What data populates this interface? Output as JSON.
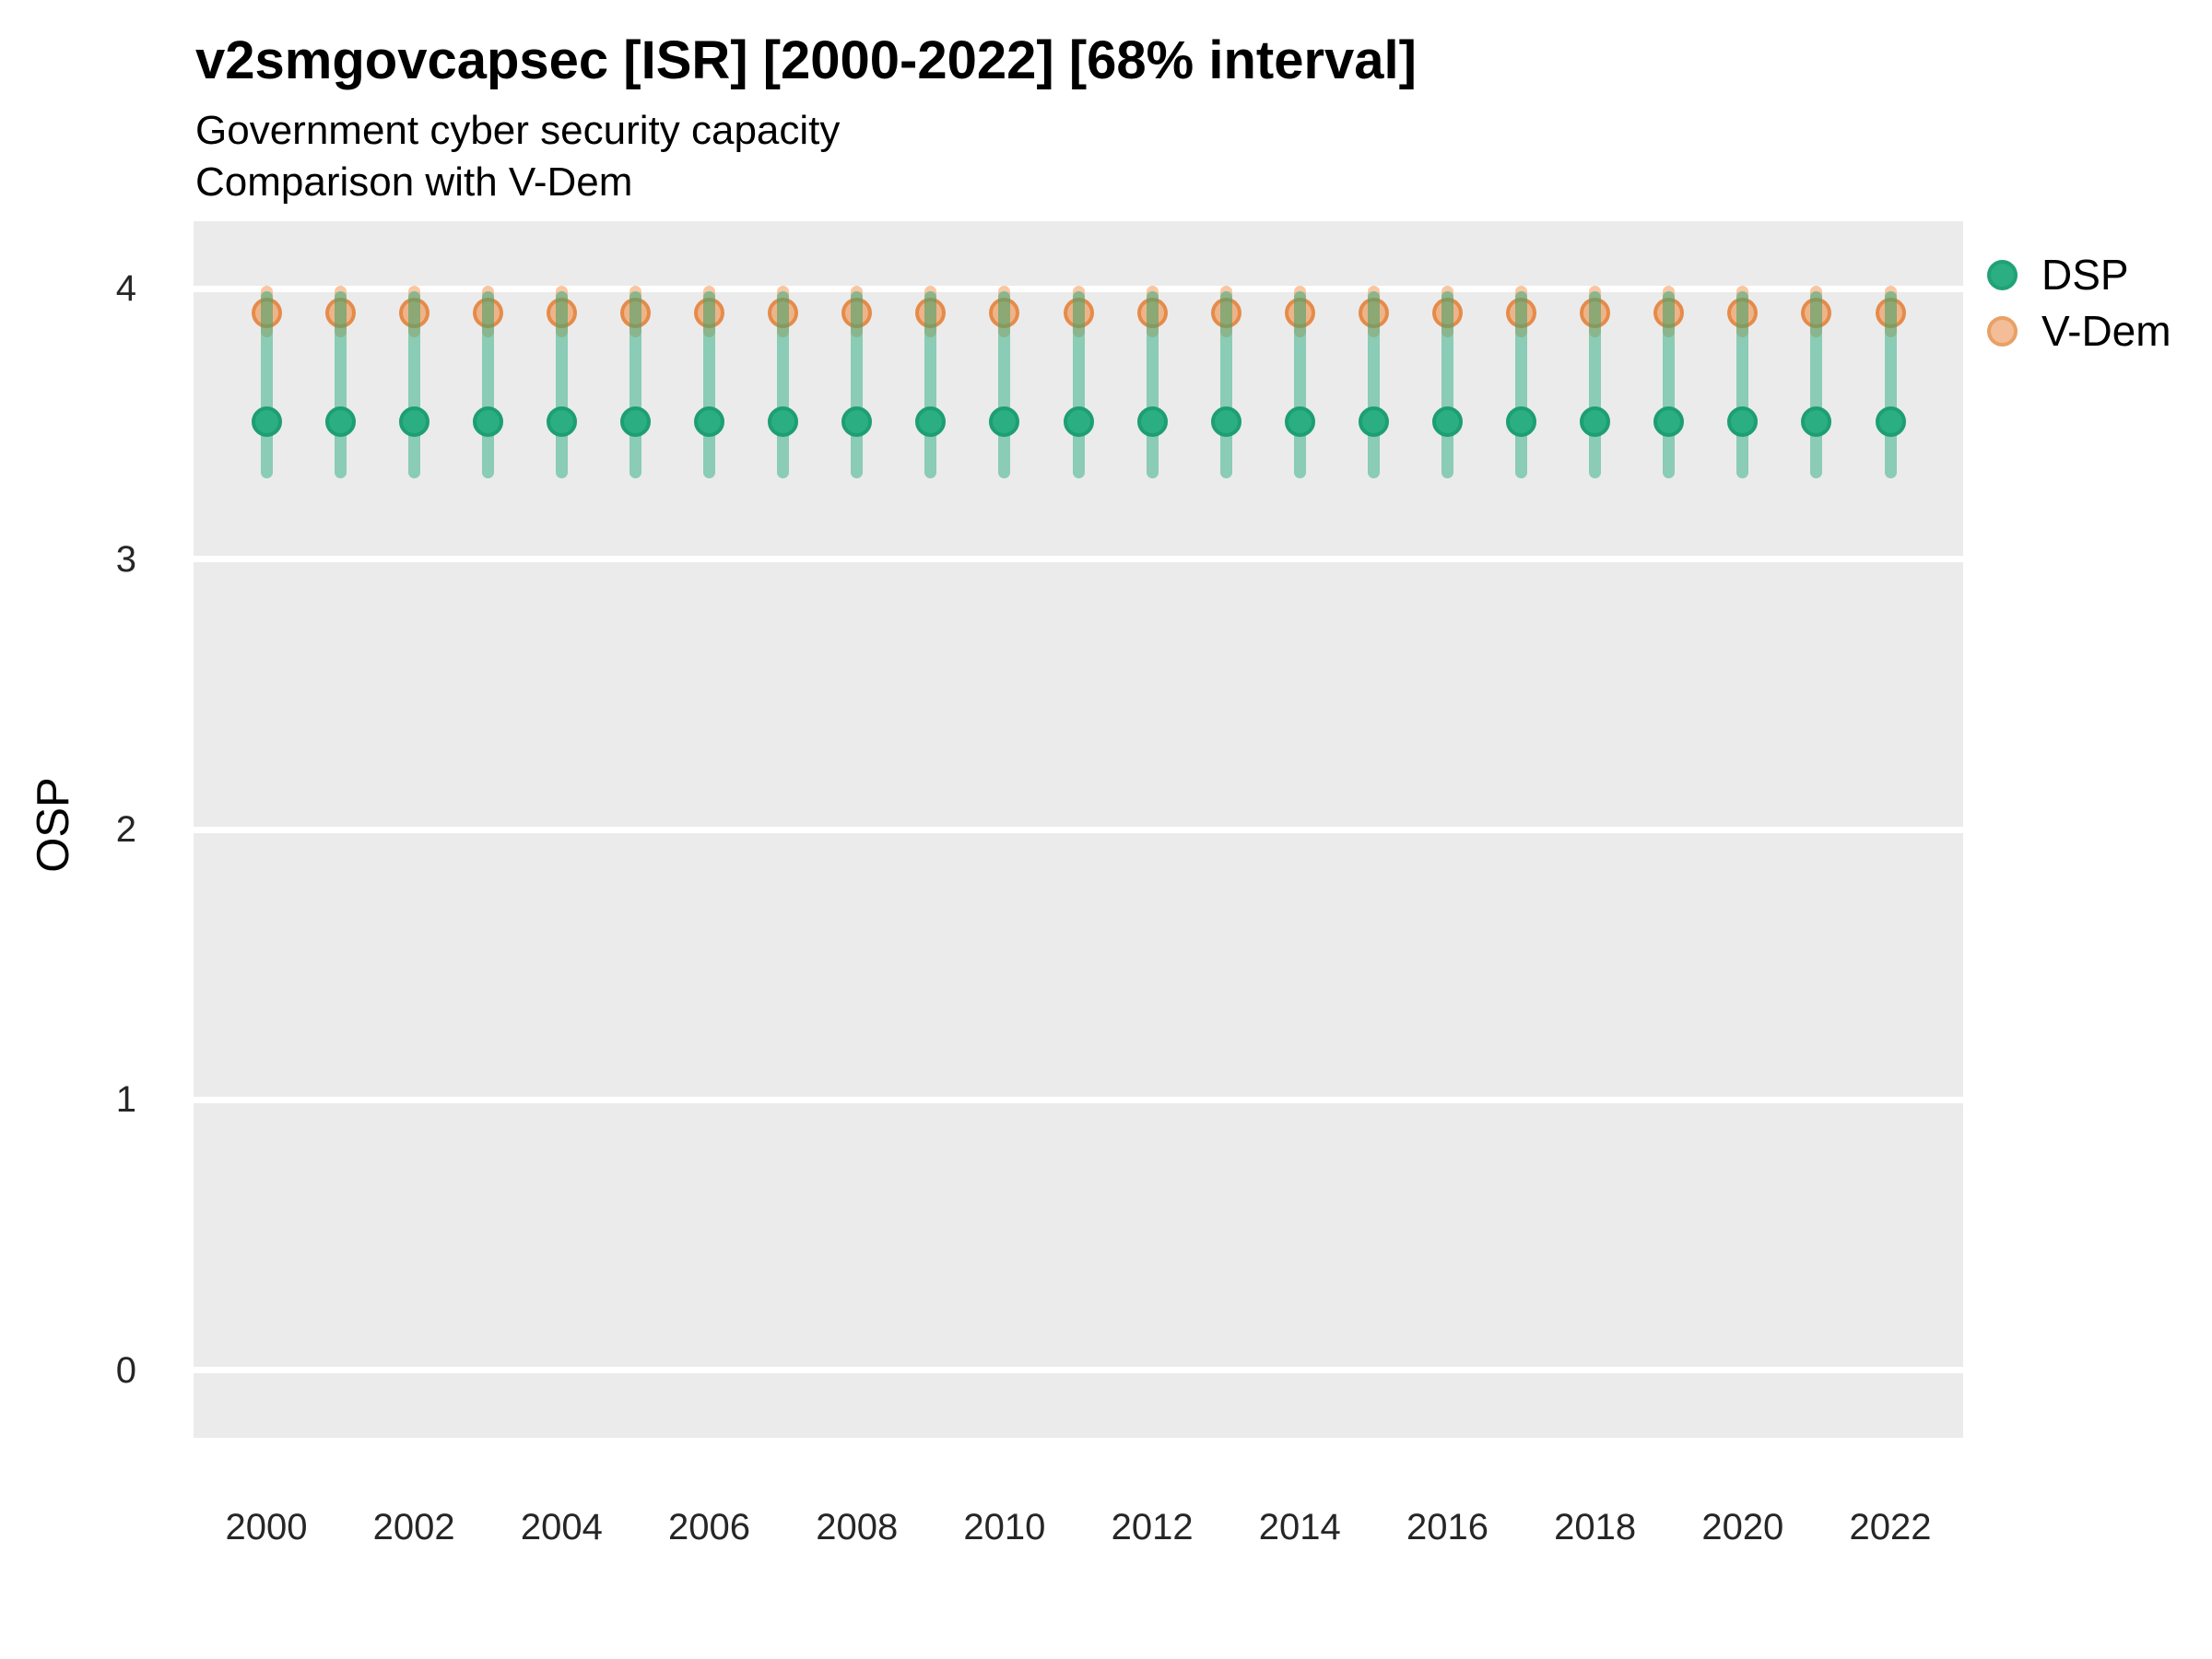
{
  "header": {
    "title": "v2smgovcapsec [ISR] [2000-2022] [68% interval]",
    "subtitle_line1": "Government cyber security capacity",
    "subtitle_line2": "Comparison with V-Dem"
  },
  "axes": {
    "y_title": "OSP",
    "y_tick_labels": [
      "4",
      "3",
      "2",
      "1",
      "0"
    ],
    "x_tick_labels": [
      "2000",
      "2002",
      "2004",
      "2006",
      "2008",
      "2010",
      "2012",
      "2014",
      "2016",
      "2018",
      "2020",
      "2022"
    ]
  },
  "legend": {
    "items": [
      {
        "label": "DSP",
        "fill": "#2bae81",
        "border": "#20a276"
      },
      {
        "label": "V-Dem",
        "fill": "#f2bd97",
        "border": "#e9a066"
      }
    ]
  },
  "colors": {
    "panel_background": "#EBEBEB",
    "gridline": "#ffffff",
    "dsp_green": "#2bae81",
    "vdem_orange": "#f09048",
    "text": "#000000"
  },
  "chart_data": {
    "type": "scatter",
    "title": "v2smgovcapsec [ISR] [2000-2022] [68% interval]",
    "subtitle": [
      "Government cyber security capacity",
      "Comparison with V-Dem"
    ],
    "xlabel": "",
    "ylabel": "OSP",
    "interval": "68% interval",
    "grid": true,
    "legend_position": "right-top",
    "ylim": [
      0,
      4
    ],
    "y_expand": 0.25,
    "yticks": [
      4,
      3,
      2,
      1,
      0
    ],
    "xticks": [
      2000,
      2002,
      2004,
      2006,
      2008,
      2010,
      2012,
      2014,
      2016,
      2018,
      2020,
      2022
    ],
    "x": [
      2000,
      2001,
      2002,
      2003,
      2004,
      2005,
      2006,
      2007,
      2008,
      2009,
      2010,
      2011,
      2012,
      2013,
      2014,
      2015,
      2016,
      2017,
      2018,
      2019,
      2020,
      2021,
      2022
    ],
    "series": [
      {
        "name": "DSP",
        "values": [
          3.51,
          3.51,
          3.51,
          3.51,
          3.51,
          3.51,
          3.51,
          3.51,
          3.51,
          3.51,
          3.51,
          3.51,
          3.51,
          3.51,
          3.51,
          3.51,
          3.51,
          3.51,
          3.51,
          3.51,
          3.51,
          3.51,
          3.51
        ],
        "lower": [
          3.3,
          3.3,
          3.3,
          3.3,
          3.3,
          3.3,
          3.3,
          3.3,
          3.3,
          3.3,
          3.3,
          3.3,
          3.3,
          3.3,
          3.3,
          3.3,
          3.3,
          3.3,
          3.3,
          3.3,
          3.3,
          3.3,
          3.3
        ],
        "upper": [
          3.99,
          3.99,
          3.99,
          3.99,
          3.99,
          3.99,
          3.99,
          3.99,
          3.99,
          3.99,
          3.99,
          3.99,
          3.99,
          3.99,
          3.99,
          3.99,
          3.99,
          3.99,
          3.99,
          3.99,
          3.99,
          3.99,
          3.99
        ],
        "point_fill": "#2bae81",
        "point_border": "#1d9e73",
        "bar_color": "rgba(42,173,128,0.5)"
      },
      {
        "name": "V-Dem",
        "values": [
          3.91,
          3.91,
          3.91,
          3.91,
          3.91,
          3.91,
          3.91,
          3.91,
          3.91,
          3.91,
          3.91,
          3.91,
          3.91,
          3.91,
          3.91,
          3.91,
          3.91,
          3.91,
          3.91,
          3.91,
          3.91,
          3.91,
          3.91
        ],
        "lower": [
          3.82,
          3.82,
          3.82,
          3.82,
          3.82,
          3.82,
          3.82,
          3.82,
          3.82,
          3.82,
          3.82,
          3.82,
          3.82,
          3.82,
          3.82,
          3.82,
          3.82,
          3.82,
          3.82,
          3.82,
          3.82,
          3.82,
          3.82
        ],
        "upper": [
          4.01,
          4.01,
          4.01,
          4.01,
          4.01,
          4.01,
          4.01,
          4.01,
          4.01,
          4.01,
          4.01,
          4.01,
          4.01,
          4.01,
          4.01,
          4.01,
          4.01,
          4.01,
          4.01,
          4.01,
          4.01,
          4.01,
          4.01
        ],
        "point_fill": "rgba(240,144,72,0.6)",
        "point_border": "rgba(222,115,35,0.62)",
        "bar_color": "rgba(240,144,72,0.5)"
      }
    ]
  }
}
